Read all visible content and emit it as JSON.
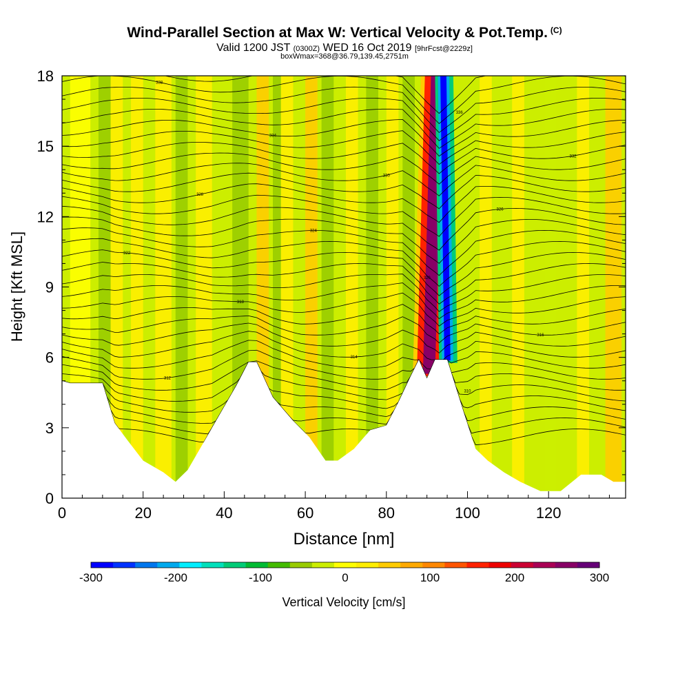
{
  "header": {
    "title": "Wind-Parallel Section at Max W: Vertical Velocity & Pot.Temp.",
    "copyright": "(C)",
    "valid_prefix": "Valid 1200 JST",
    "valid_z": "(0300Z)",
    "valid_date": "WED 16 Oct 2019",
    "forecast": "[9hrFcst@2229z]",
    "box_info": "boxWmax=368@36.79,139.45,2751m"
  },
  "chart_data": {
    "type": "heatmap",
    "title": "Wind-Parallel Section at Max W: Vertical Velocity & Pot.Temp.",
    "xlabel": "Distance [nm]",
    "ylabel": "Height [Kft MSL]",
    "xlim": [
      0,
      139
    ],
    "ylim": [
      0,
      18
    ],
    "x_ticks": [
      0,
      20,
      40,
      60,
      80,
      100,
      120
    ],
    "y_ticks": [
      0,
      3,
      6,
      9,
      12,
      15,
      18
    ],
    "terrain_height_kft": {
      "x": [
        0,
        2,
        6,
        10,
        13,
        16,
        20,
        25,
        28,
        31,
        35,
        39,
        43,
        46,
        48,
        52,
        57,
        61,
        65,
        68,
        72,
        76,
        80,
        83,
        86,
        88,
        90,
        92,
        95,
        99,
        102,
        105,
        109,
        113,
        118,
        123,
        128,
        133,
        136,
        139
      ],
      "y": [
        5.0,
        4.9,
        4.9,
        4.9,
        3.2,
        2.5,
        1.6,
        1.1,
        0.7,
        1.2,
        2.4,
        3.6,
        4.8,
        5.8,
        5.8,
        4.3,
        3.3,
        2.6,
        1.6,
        1.6,
        2.1,
        2.9,
        3.1,
        4.1,
        5.2,
        5.9,
        5.1,
        5.9,
        5.9,
        3.7,
        2.1,
        1.6,
        1.1,
        0.7,
        0.3,
        0.3,
        1.0,
        1.0,
        0.7,
        0.7
      ]
    },
    "colorbar": {
      "label": "Vertical Velocity [cm/s]",
      "min": -300,
      "max": 300,
      "tick_values": [
        -300,
        -200,
        -100,
        0,
        100,
        200,
        300
      ],
      "tick_labels": [
        "-300",
        "-200",
        "-100",
        "0",
        "100",
        "200",
        "300"
      ],
      "colors": [
        "#0000ff",
        "#0033ff",
        "#0077ee",
        "#00aaee",
        "#00eeff",
        "#00e0bb",
        "#00cc77",
        "#00bb33",
        "#44bb00",
        "#99cc00",
        "#ccee00",
        "#ffff00",
        "#ffee00",
        "#ffcc00",
        "#ffaa00",
        "#ff8800",
        "#ff5500",
        "#ff2200",
        "#ee0000",
        "#cc0033",
        "#aa0055",
        "#880066",
        "#660077"
      ]
    },
    "vertical_velocity_bands": [
      {
        "x": [
          2,
          7
        ],
        "w": 10
      },
      {
        "x": [
          9,
          12
        ],
        "w": -40
      },
      {
        "x": [
          12,
          15
        ],
        "w": 20
      },
      {
        "x": [
          17,
          20
        ],
        "w": 15
      },
      {
        "x": [
          23,
          27
        ],
        "w": 20
      },
      {
        "x": [
          28,
          31
        ],
        "w": -40
      },
      {
        "x": [
          33,
          37
        ],
        "w": 15
      },
      {
        "x": [
          42,
          46
        ],
        "w": -50
      },
      {
        "x": [
          48,
          51
        ],
        "w": 40
      },
      {
        "x": [
          52,
          54
        ],
        "w": -60
      },
      {
        "x": [
          54,
          57
        ],
        "w": 30
      },
      {
        "x": [
          60,
          63
        ],
        "w": 40
      },
      {
        "x": [
          64,
          67
        ],
        "w": -50
      },
      {
        "x": [
          70,
          73
        ],
        "w": 25
      },
      {
        "x": [
          75,
          78
        ],
        "w": -40
      },
      {
        "x": [
          80,
          83
        ],
        "w": 25
      },
      {
        "x": [
          84,
          87
        ],
        "w": -60
      },
      {
        "x": [
          103,
          106
        ],
        "w": 30
      },
      {
        "x": [
          111,
          114
        ],
        "w": 20
      },
      {
        "x": [
          119,
          122
        ],
        "w": -30
      },
      {
        "x": [
          127,
          130
        ],
        "w": 25
      },
      {
        "x": [
          134,
          138
        ],
        "w": 60
      }
    ],
    "updraft_core": {
      "x": [
        88,
        93
      ],
      "w_max": 368,
      "top_kft": 18
    },
    "downdraft_core": {
      "x": [
        93,
        97
      ],
      "w_min": -300,
      "top_kft": 18
    },
    "contour_labels": [
      "306",
      "308",
      "310",
      "312",
      "314",
      "316",
      "318",
      "320",
      "322",
      "324",
      "326",
      "328",
      "330",
      "332",
      "334",
      "336",
      "338",
      "340"
    ]
  }
}
